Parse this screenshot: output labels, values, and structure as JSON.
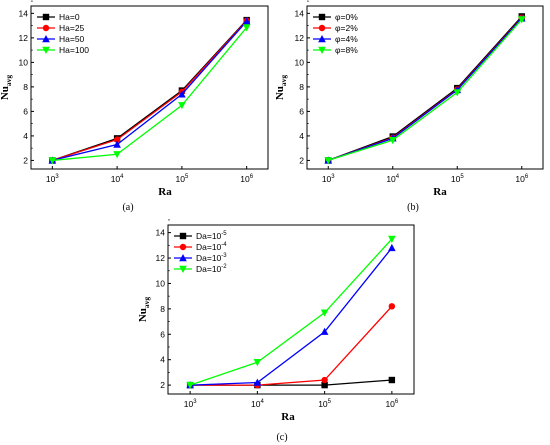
{
  "chart_data": [
    {
      "panel": "(a)",
      "type": "line",
      "xscale": "log",
      "x": [
        1000,
        10000,
        100000,
        1000000
      ],
      "xticks": [
        {
          "base": "10",
          "exp": "3"
        },
        {
          "base": "10",
          "exp": "4"
        },
        {
          "base": "10",
          "exp": "5"
        },
        {
          "base": "10",
          "exp": "6"
        }
      ],
      "yticks": [
        "2",
        "4",
        "6",
        "8",
        "10",
        "12",
        "14"
      ],
      "ylim": [
        1.3,
        14.6
      ],
      "xlabel": "Ra",
      "ylabel": {
        "main": "Nu",
        "sub": "avg"
      },
      "legend_position": "top-left",
      "series": [
        {
          "name": "Ha=0",
          "color": "#000000",
          "marker": "square",
          "values": [
            2.0,
            3.8,
            7.7,
            13.45
          ]
        },
        {
          "name": "Ha=25",
          "color": "#ff0000",
          "marker": "circle",
          "values": [
            2.0,
            3.7,
            7.6,
            13.4
          ]
        },
        {
          "name": "Ha=50",
          "color": "#0000ff",
          "marker": "triangle-up",
          "values": [
            2.0,
            3.3,
            7.4,
            13.35
          ]
        },
        {
          "name": "Ha=100",
          "color": "#00ff00",
          "marker": "triangle-down",
          "values": [
            2.0,
            2.5,
            6.5,
            12.85
          ]
        }
      ]
    },
    {
      "panel": "(b)",
      "type": "line",
      "xscale": "log",
      "x": [
        1000,
        10000,
        100000,
        1000000
      ],
      "xticks": [
        {
          "base": "10",
          "exp": "3"
        },
        {
          "base": "10",
          "exp": "4"
        },
        {
          "base": "10",
          "exp": "5"
        },
        {
          "base": "10",
          "exp": "6"
        }
      ],
      "yticks": [
        "2",
        "4",
        "6",
        "8",
        "10",
        "12",
        "14"
      ],
      "ylim": [
        1.3,
        14.6
      ],
      "xlabel": "Ra",
      "ylabel": {
        "main": "Nu",
        "sub": "avg"
      },
      "legend_position": "top-left",
      "series": [
        {
          "name": "φ=0%",
          "color": "#000000",
          "marker": "square",
          "values": [
            2.0,
            3.95,
            7.9,
            13.75
          ]
        },
        {
          "name": "φ=2%",
          "color": "#ff0000",
          "marker": "circle",
          "values": [
            2.0,
            3.85,
            7.8,
            13.65
          ]
        },
        {
          "name": "φ=4%",
          "color": "#0000ff",
          "marker": "triangle-up",
          "values": [
            2.0,
            3.8,
            7.75,
            13.6
          ]
        },
        {
          "name": "φ=8%",
          "color": "#00ff00",
          "marker": "triangle-down",
          "values": [
            2.0,
            3.65,
            7.55,
            13.5
          ]
        }
      ]
    },
    {
      "panel": "(c)",
      "type": "line",
      "xscale": "log",
      "x": [
        1000,
        10000,
        100000,
        1000000
      ],
      "xticks": [
        {
          "base": "10",
          "exp": "3"
        },
        {
          "base": "10",
          "exp": "4"
        },
        {
          "base": "10",
          "exp": "5"
        },
        {
          "base": "10",
          "exp": "6"
        }
      ],
      "yticks": [
        "2",
        "4",
        "6",
        "8",
        "10",
        "12",
        "14"
      ],
      "ylim": [
        1.3,
        14.6
      ],
      "xlabel": "Ra",
      "ylabel": {
        "main": "Nu",
        "sub": "avg"
      },
      "legend_position": "top-left",
      "series": [
        {
          "name": "Da=10",
          "name_exp": "-5",
          "color": "#000000",
          "marker": "square",
          "values": [
            2.0,
            2.0,
            2.0,
            2.4
          ]
        },
        {
          "name": "Da=10",
          "name_exp": "-4",
          "color": "#ff0000",
          "marker": "circle",
          "values": [
            2.0,
            2.0,
            2.4,
            8.2
          ]
        },
        {
          "name": "Da=10",
          "name_exp": "-3",
          "color": "#0000ff",
          "marker": "triangle-up",
          "values": [
            2.0,
            2.2,
            6.2,
            12.8
          ]
        },
        {
          "name": "Da=10",
          "name_exp": "-2",
          "color": "#00ff00",
          "marker": "triangle-down",
          "values": [
            2.0,
            3.8,
            7.7,
            13.5
          ]
        }
      ]
    }
  ]
}
